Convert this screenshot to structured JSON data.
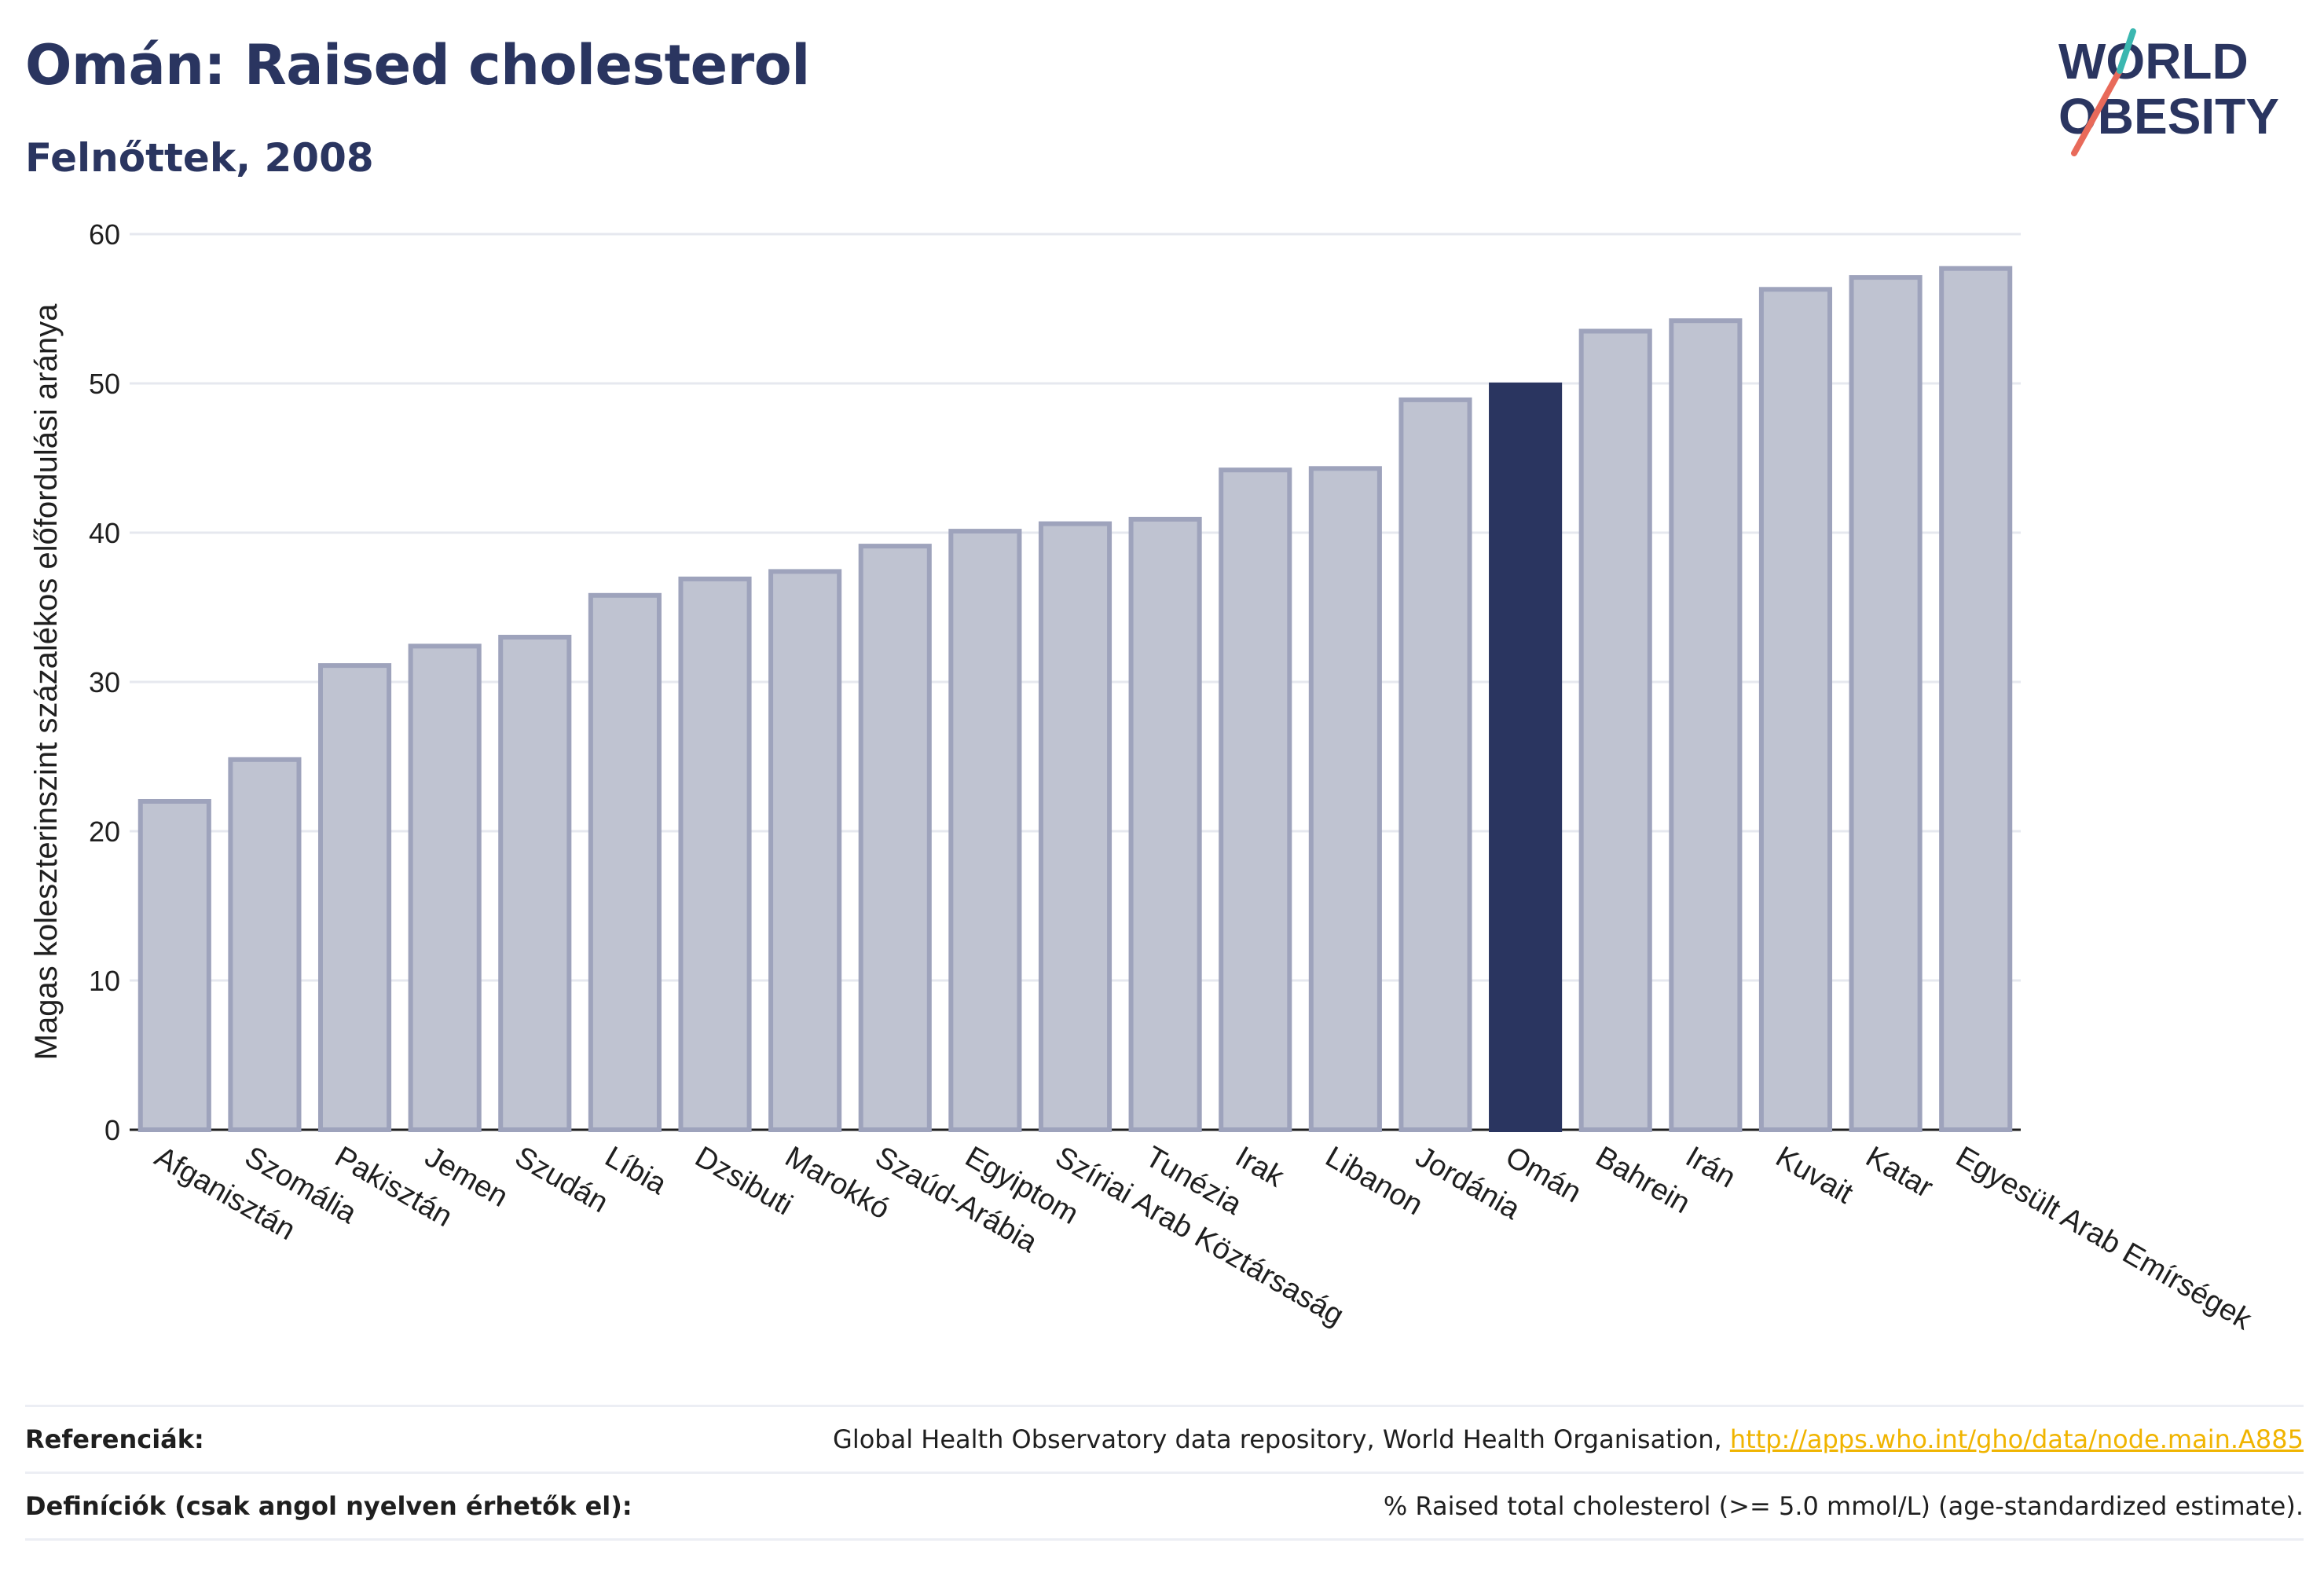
{
  "header": {
    "title": "Omán: Raised cholesterol",
    "subtitle": "Felnőttek, 2008"
  },
  "logo": {
    "line1": "WORLD",
    "line2": "OBESITY"
  },
  "chart_data": {
    "type": "bar",
    "ylabel": "Magas koleszterinszint százalékos előfordulási aránya",
    "ylim": [
      0,
      60
    ],
    "yticks": [
      0,
      10,
      20,
      30,
      40,
      50,
      60
    ],
    "grid": true,
    "highlight": "Omán",
    "colors": {
      "bar": "#bfc3d1",
      "bar_border": "#9ea3bc",
      "highlight": "#2a3560"
    },
    "categories": [
      "Afganisztán",
      "Szomália",
      "Pakisztán",
      "Jemen",
      "Szudán",
      "Líbia",
      "Dzsibuti",
      "Marokkó",
      "Szaúd-Arábia",
      "Egyiptom",
      "Szíriai Arab Köztársaság",
      "Tunézia",
      "Irak",
      "Libanon",
      "Jordánia",
      "Omán",
      "Bahrein",
      "Irán",
      "Kuvait",
      "Katar",
      "Egyesült Arab Emírségek"
    ],
    "values": [
      22.0,
      24.8,
      31.1,
      32.4,
      33.0,
      35.8,
      36.9,
      37.4,
      39.1,
      40.1,
      40.6,
      40.9,
      44.2,
      44.3,
      48.9,
      49.9,
      53.5,
      54.2,
      56.3,
      57.1,
      57.7
    ]
  },
  "references": {
    "ref_label": "Referenciák:",
    "ref_text": "Global Health Observatory data repository, World Health Organisation, ",
    "ref_link": "http://apps.who.int/gho/data/node.main.A885",
    "def_label": "Definíciók (csak angol nyelven érhetők el):",
    "def_text": "% Raised total cholesterol (>= 5.0 mmol/L) (age-standardized estimate)."
  }
}
